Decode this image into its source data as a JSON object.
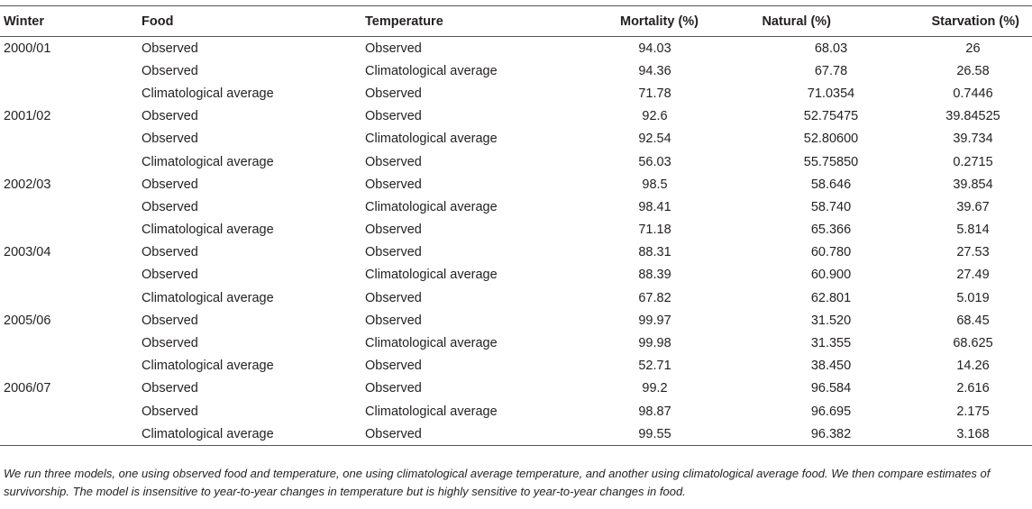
{
  "table": {
    "headers": [
      "Winter",
      "Food",
      "Temperature",
      "Mortality (%)",
      "Natural (%)",
      "Starvation (%)"
    ],
    "rows": [
      [
        "2000/01",
        "Observed",
        "Observed",
        "94.03",
        "68.03",
        "26"
      ],
      [
        "",
        "Observed",
        "Climatological average",
        "94.36",
        "67.78",
        "26.58"
      ],
      [
        "",
        "Climatological average",
        "Observed",
        "71.78",
        "71.0354",
        "0.7446"
      ],
      [
        "2001/02",
        "Observed",
        "Observed",
        "92.6",
        "52.75475",
        "39.84525"
      ],
      [
        "",
        "Observed",
        "Climatological average",
        "92.54",
        "52.80600",
        "39.734"
      ],
      [
        "",
        "Climatological average",
        "Observed",
        "56.03",
        "55.75850",
        "0.2715"
      ],
      [
        "2002/03",
        "Observed",
        "Observed",
        "98.5",
        "58.646",
        "39.854"
      ],
      [
        "",
        "Observed",
        "Climatological average",
        "98.41",
        "58.740",
        "39.67"
      ],
      [
        "",
        "Climatological average",
        "Observed",
        "71.18",
        "65.366",
        "5.814"
      ],
      [
        "2003/04",
        "Observed",
        "Observed",
        "88.31",
        "60.780",
        "27.53"
      ],
      [
        "",
        "Observed",
        "Climatological average",
        "88.39",
        "60.900",
        "27.49"
      ],
      [
        "",
        "Climatological average",
        "Observed",
        "67.82",
        "62.801",
        "5.019"
      ],
      [
        "2005/06",
        "Observed",
        "Observed",
        "99.97",
        "31.520",
        "68.45"
      ],
      [
        "",
        "Observed",
        "Climatological average",
        "99.98",
        "31.355",
        "68.625"
      ],
      [
        "",
        "Climatological average",
        "Observed",
        "52.71",
        "38.450",
        "14.26"
      ],
      [
        "2006/07",
        "Observed",
        "Observed",
        "99.2",
        "96.584",
        "2.616"
      ],
      [
        "",
        "Observed",
        "Climatological average",
        "98.87",
        "96.695",
        "2.175"
      ],
      [
        "",
        "Climatological average",
        "Observed",
        "99.55",
        "96.382",
        "3.168"
      ]
    ]
  },
  "caption": "We run three models, one using observed food and temperature, one using climatological average temperature, and another using climatological average food. We then compare estimates of survivorship. The model is insensitive to year-to-year changes in temperature but is highly sensitive to year-to-year changes in food."
}
